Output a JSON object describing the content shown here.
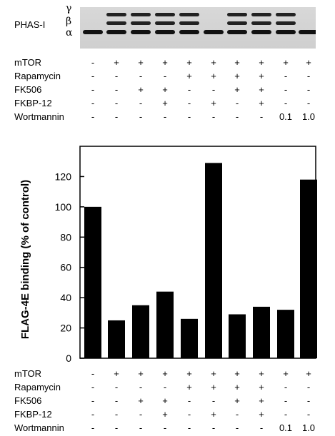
{
  "blot": {
    "protein_label": "PHAS-I",
    "band_labels": [
      "γ",
      "β",
      "α"
    ]
  },
  "conditions": {
    "rows": [
      {
        "label": "mTOR",
        "values": [
          "-",
          "+",
          "+",
          "+",
          "+",
          "+",
          "+",
          "+",
          "+",
          "+"
        ]
      },
      {
        "label": "Rapamycin",
        "values": [
          "-",
          "-",
          "-",
          "-",
          "+",
          "+",
          "+",
          "+",
          "-",
          "-"
        ]
      },
      {
        "label": "FK506",
        "values": [
          "-",
          "-",
          "+",
          "+",
          "-",
          "-",
          "+",
          "+",
          "-",
          "-"
        ]
      },
      {
        "label": "FKBP-12",
        "values": [
          "-",
          "-",
          "-",
          "+",
          "-",
          "+",
          "-",
          "+",
          "-",
          "-"
        ]
      },
      {
        "label": "Wortmannin",
        "values": [
          "-",
          "-",
          "-",
          "-",
          "-",
          "-",
          "-",
          "-",
          "0.1",
          "1.0"
        ]
      }
    ]
  },
  "chart_data": {
    "type": "bar",
    "ylabel": "FLAG-4E binding (% of control)",
    "ylim": [
      0,
      140
    ],
    "yticks": [
      0,
      20,
      40,
      60,
      80,
      100,
      120
    ],
    "values": [
      100,
      25,
      35,
      44,
      26,
      129,
      29,
      34,
      32,
      118
    ],
    "bar_color": "#000000"
  }
}
